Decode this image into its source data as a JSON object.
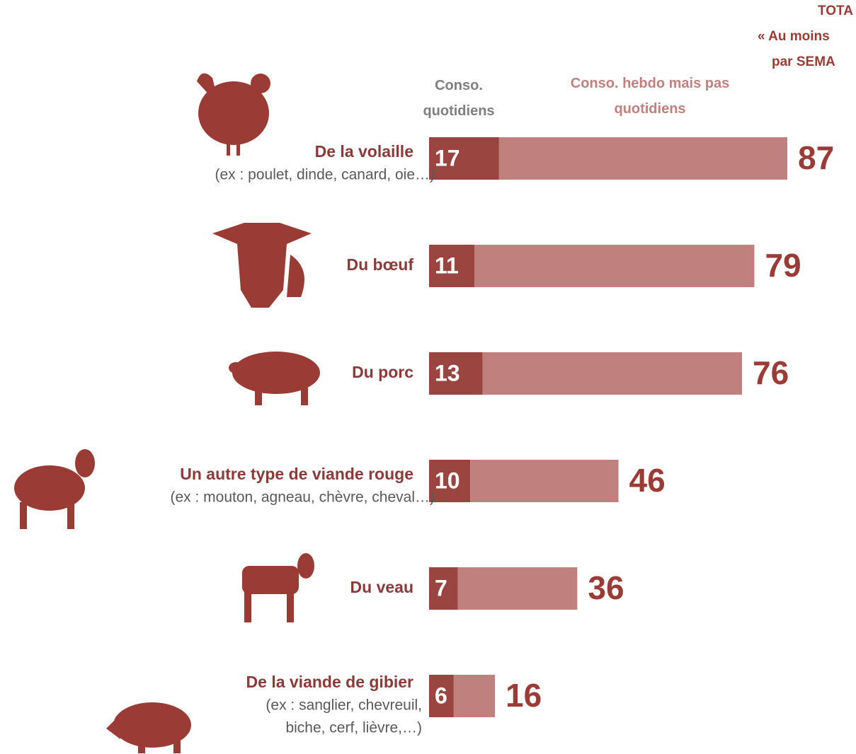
{
  "chart_data": {
    "type": "bar",
    "header": [
      "TOTA",
      "« Au moins",
      "par SEMA"
    ],
    "categories": [
      "De la volaille",
      "Du bœuf",
      "Du porc",
      "Un autre type de viande rouge",
      "Du veau",
      "De la viande de gibier"
    ],
    "sublabels": [
      [
        "(ex : poulet, dinde, canard, oie…)"
      ],
      null,
      null,
      [
        "(ex : mouton, agneau, chèvre, cheval…)"
      ],
      null,
      [
        "(ex : sanglier, chevreuil,",
        "biche, cerf, lièvre,…)"
      ]
    ],
    "series": [
      {
        "name": "Conso. quotidiens",
        "color": "#9b4541",
        "values": [
          17,
          11,
          13,
          10,
          7,
          6
        ]
      },
      {
        "name": "Conso. hebdo mais pas quotidiens",
        "color": "#c0807e",
        "values": [
          70,
          68,
          63,
          36,
          29,
          10
        ]
      }
    ],
    "totals": [
      87,
      79,
      76,
      46,
      36,
      16
    ]
  }
}
